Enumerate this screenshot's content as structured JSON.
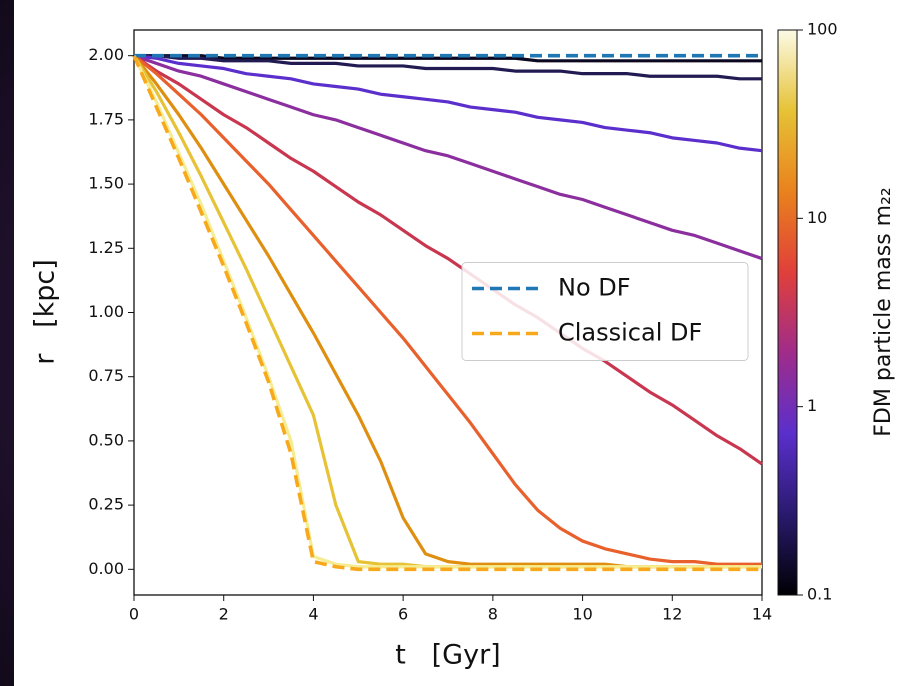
{
  "chart_data": {
    "type": "line",
    "x_label": "t   [Gyr]",
    "y_label": "r   [kpc]",
    "x": [
      0,
      0.5,
      1,
      1.5,
      2,
      2.5,
      3,
      3.5,
      4,
      4.5,
      5,
      5.5,
      6,
      6.5,
      7,
      7.5,
      8,
      8.5,
      9,
      9.5,
      10,
      10.5,
      11,
      11.5,
      12,
      12.5,
      13,
      13.5,
      14
    ],
    "xlim": [
      0,
      14
    ],
    "xticks": [
      0,
      2,
      4,
      6,
      8,
      10,
      12,
      14
    ],
    "ylim": [
      -0.1,
      2.1
    ],
    "yticks": [
      {
        "value": 0,
        "label": "0.00"
      },
      {
        "value": 0.25,
        "label": "0.25"
      },
      {
        "value": 0.5,
        "label": "0.50"
      },
      {
        "value": 0.75,
        "label": "0.75"
      },
      {
        "value": 1,
        "label": "1.00"
      },
      {
        "value": 1.25,
        "label": "1.25"
      },
      {
        "value": 1.5,
        "label": "1.50"
      },
      {
        "value": 1.75,
        "label": "1.75"
      },
      {
        "value": 2,
        "label": "2.00"
      }
    ],
    "legend": "center right",
    "series": [
      {
        "color": "#0b0820",
        "values": [
          2,
          2,
          2,
          2,
          1.99,
          1.99,
          1.99,
          1.99,
          1.99,
          1.99,
          1.99,
          1.99,
          1.99,
          1.99,
          1.99,
          1.99,
          1.99,
          1.99,
          1.98,
          1.98,
          1.98,
          1.98,
          1.98,
          1.98,
          1.98,
          1.98,
          1.98,
          1.98,
          1.98
        ]
      },
      {
        "color": "#221b52",
        "values": [
          2,
          2,
          1.99,
          1.99,
          1.98,
          1.98,
          1.98,
          1.97,
          1.97,
          1.97,
          1.96,
          1.96,
          1.96,
          1.95,
          1.95,
          1.95,
          1.95,
          1.94,
          1.94,
          1.94,
          1.93,
          1.93,
          1.93,
          1.92,
          1.92,
          1.92,
          1.92,
          1.91,
          1.91
        ]
      },
      {
        "color": "#5b2fcc",
        "values": [
          2,
          1.99,
          1.97,
          1.96,
          1.95,
          1.93,
          1.92,
          1.91,
          1.89,
          1.88,
          1.87,
          1.85,
          1.84,
          1.83,
          1.82,
          1.8,
          1.79,
          1.78,
          1.76,
          1.75,
          1.74,
          1.72,
          1.71,
          1.7,
          1.68,
          1.67,
          1.66,
          1.64,
          1.63
        ]
      },
      {
        "color": "#8c2f9e",
        "values": [
          2,
          1.97,
          1.94,
          1.92,
          1.89,
          1.86,
          1.83,
          1.8,
          1.77,
          1.75,
          1.72,
          1.69,
          1.66,
          1.63,
          1.61,
          1.58,
          1.55,
          1.52,
          1.49,
          1.46,
          1.44,
          1.41,
          1.38,
          1.35,
          1.32,
          1.3,
          1.27,
          1.24,
          1.21
        ]
      },
      {
        "color": "#c93650",
        "values": [
          2,
          1.94,
          1.89,
          1.83,
          1.77,
          1.72,
          1.66,
          1.6,
          1.55,
          1.49,
          1.43,
          1.38,
          1.32,
          1.26,
          1.21,
          1.15,
          1.09,
          1.03,
          0.98,
          0.92,
          0.86,
          0.81,
          0.75,
          0.69,
          0.64,
          0.58,
          0.52,
          0.47,
          0.41
        ]
      },
      {
        "color": "#e8602c",
        "values": [
          2,
          1.93,
          1.85,
          1.77,
          1.68,
          1.59,
          1.5,
          1.4,
          1.3,
          1.2,
          1.1,
          1,
          0.9,
          0.79,
          0.68,
          0.57,
          0.45,
          0.33,
          0.23,
          0.16,
          0.11,
          0.08,
          0.06,
          0.04,
          0.03,
          0.03,
          0.02,
          0.02,
          0.02
        ]
      },
      {
        "color": "#df8f10",
        "values": [
          2,
          1.89,
          1.77,
          1.64,
          1.5,
          1.36,
          1.22,
          1.07,
          0.92,
          0.76,
          0.6,
          0.42,
          0.2,
          0.06,
          0.03,
          0.02,
          0.02,
          0.02,
          0.02,
          0.02,
          0.02,
          0.02,
          0.01,
          0.01,
          0.01,
          0.01,
          0.01,
          0.01,
          0.01
        ]
      },
      {
        "color": "#e6c236",
        "values": [
          2,
          1.86,
          1.7,
          1.53,
          1.35,
          1.17,
          0.98,
          0.79,
          0.6,
          0.25,
          0.03,
          0.02,
          0.02,
          0.01,
          0.01,
          0.01,
          0.01,
          0.01,
          0.01,
          0.01,
          0.01,
          0.01,
          0.01,
          0.01,
          0.01,
          0.01,
          0.01,
          0.01,
          0.01
        ]
      },
      {
        "color": "#f6ec92",
        "values": [
          2,
          1.82,
          1.62,
          1.42,
          1.2,
          0.98,
          0.75,
          0.5,
          0.05,
          0.02,
          0.01,
          0.01,
          0.01,
          0.01,
          0.01,
          0.01,
          0.01,
          0.01,
          0.01,
          0.01,
          0.01,
          0.01,
          0.01,
          0.01,
          0.01,
          0.01,
          0.01,
          0.01,
          0.01
        ]
      },
      {
        "name": "No DF",
        "color": "#1f77b4",
        "dashed": true,
        "values": [
          2,
          2,
          2,
          2,
          2,
          2,
          2,
          2,
          2,
          2,
          2,
          2,
          2,
          2,
          2,
          2,
          2,
          2,
          2,
          2,
          2,
          2,
          2,
          2,
          2,
          2,
          2,
          2,
          2
        ]
      },
      {
        "name": "Classical DF",
        "color": "#f7a81b",
        "dashed": true,
        "values": [
          2,
          1.8,
          1.6,
          1.39,
          1.18,
          0.96,
          0.73,
          0.45,
          0.03,
          0.01,
          0,
          0,
          0,
          0,
          0,
          0,
          0,
          0,
          0,
          0,
          0,
          0,
          0,
          0,
          0,
          0,
          0,
          0,
          0
        ]
      }
    ],
    "colorbar": {
      "label": "FDM particle mass m₂₂",
      "log": true,
      "lim": [
        0.1,
        100
      ],
      "ticks": [
        0.1,
        1,
        10,
        100
      ],
      "colors": [
        "#000004",
        "#2a1a6e",
        "#5a2fcc",
        "#a02c8a",
        "#e0403a",
        "#e9821d",
        "#e6c236",
        "#fcfbe6"
      ]
    }
  }
}
